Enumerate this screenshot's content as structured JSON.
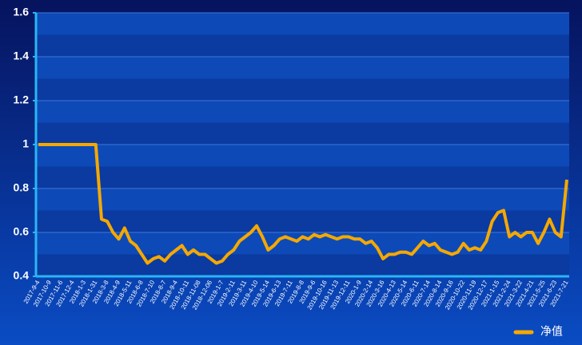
{
  "chart_data": {
    "type": "line",
    "categories": [
      "2017-9-4",
      null,
      "2017-10-9",
      null,
      "2017-11-6",
      null,
      "2017-12-4",
      null,
      "2018-1-3",
      null,
      "2018-1-31",
      null,
      "2018-3-8",
      null,
      "2018-4-9",
      null,
      "2018-5-11",
      null,
      "2018-6-8",
      null,
      "2018-7-10",
      null,
      "2018-8-7",
      null,
      "2018-9-4",
      null,
      "2018-10-11",
      null,
      "2018-11-08",
      null,
      "2018-12-06",
      null,
      "2019-1-7",
      null,
      "2019-2-11",
      null,
      "2019-3-11",
      null,
      "2019-4-10",
      null,
      "2019-5-14",
      null,
      "2019-6-13",
      null,
      "2019-7-11",
      null,
      "2019-8-8",
      null,
      "2019-9-6",
      null,
      "2019-10-16",
      null,
      "2019-11-13",
      null,
      "2019-12-11",
      null,
      "2020-1-9",
      null,
      "2020-2-14",
      null,
      "2020-3-16",
      null,
      "2020-4-13",
      null,
      "2020-5-14",
      null,
      "2020-6-11",
      null,
      "2020-7-14",
      null,
      "2020-8-14",
      null,
      "2020-9-16",
      null,
      "2020-10-22",
      null,
      "2020-11-19",
      null,
      "2020-12-17",
      null,
      "2021-1-15",
      null,
      "2021-2-24",
      null,
      "2021-3-22",
      null,
      "2021-4-21",
      null,
      "2021-5-25",
      null,
      "2021-6-23",
      null,
      "2021-7-21"
    ],
    "series": [
      {
        "name": "净值",
        "color": "#f5a800",
        "values": [
          1.0,
          1.0,
          1.0,
          1.0,
          1.0,
          1.0,
          1.0,
          1.0,
          1.0,
          1.0,
          1.0,
          0.66,
          0.65,
          0.6,
          0.57,
          0.62,
          0.56,
          0.54,
          0.5,
          0.46,
          0.48,
          0.49,
          0.47,
          0.5,
          0.52,
          0.54,
          0.5,
          0.52,
          0.5,
          0.5,
          0.48,
          0.46,
          0.47,
          0.5,
          0.52,
          0.56,
          0.58,
          0.6,
          0.63,
          0.58,
          0.52,
          0.54,
          0.57,
          0.58,
          0.57,
          0.56,
          0.58,
          0.57,
          0.59,
          0.58,
          0.59,
          0.58,
          0.57,
          0.58,
          0.58,
          0.57,
          0.57,
          0.55,
          0.56,
          0.53,
          0.48,
          0.5,
          0.5,
          0.51,
          0.51,
          0.5,
          0.53,
          0.56,
          0.54,
          0.55,
          0.52,
          0.51,
          0.5,
          0.51,
          0.55,
          0.52,
          0.53,
          0.52,
          0.56,
          0.65,
          0.69,
          0.7,
          0.58,
          0.6,
          0.58,
          0.6,
          0.6,
          0.55,
          0.6,
          0.66,
          0.6,
          0.58,
          0.84
        ]
      }
    ],
    "ylim": [
      0.4,
      1.6
    ],
    "yticks": [
      0.4,
      0.6,
      0.8,
      1,
      1.2,
      1.4,
      1.6
    ],
    "grid": true,
    "legend": "bottom-right"
  }
}
